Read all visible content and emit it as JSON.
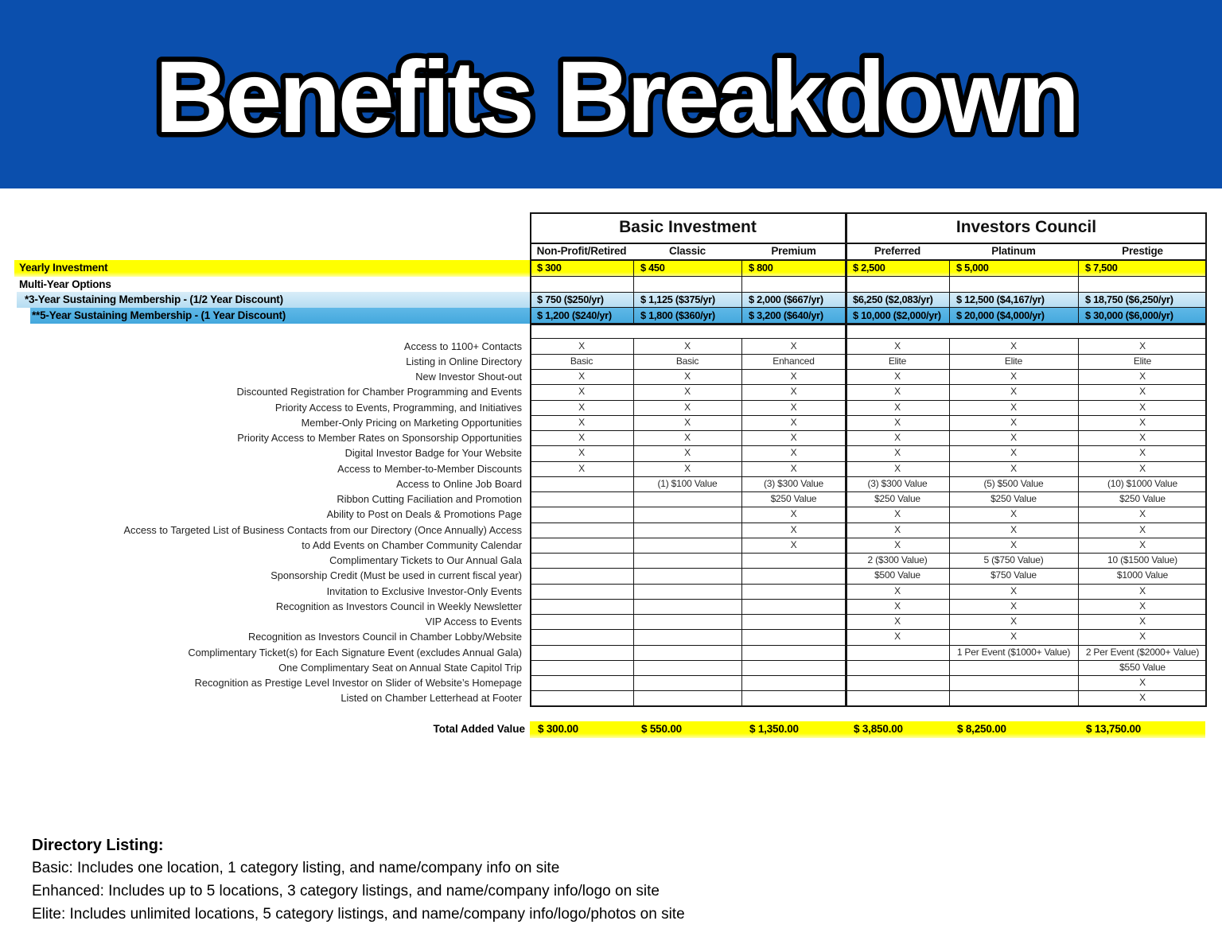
{
  "title": "Benefits Breakdown",
  "colors": {
    "hero_blue": "#0B4FAD",
    "band_yellow": "#FFFF00",
    "band_lightblue": "#BEE3F4",
    "band_blue": "#4FB0E2",
    "border_black": "#141414"
  },
  "table": {
    "groups": [
      {
        "label": "Basic Investment"
      },
      {
        "label": "Investors Council"
      }
    ],
    "columns": [
      "Non-Profit/Retired",
      "Classic",
      "Premium",
      "Preferred",
      "Platinum",
      "Prestige"
    ],
    "pricing_rows": [
      {
        "label": "Yearly Investment",
        "style": "yellow",
        "values": [
          "$ 300",
          "$ 450",
          "$ 800",
          "$ 2,500",
          "$ 5,000",
          "$ 7,500"
        ]
      },
      {
        "label": "Multi-Year Options",
        "style": "white",
        "values": [
          "",
          "",
          "",
          "",
          "",
          ""
        ]
      },
      {
        "label": "*3-Year Sustaining Membership - (1/2 Year Discount)",
        "style": "lightblue",
        "values": [
          "$ 750 ($250/yr)",
          "$ 1,125 ($375/yr)",
          "$ 2,000 ($667/yr)",
          "$6,250 ($2,083/yr)",
          "$ 12,500 ($4,167/yr)",
          "$ 18,750 ($6,250/yr)"
        ]
      },
      {
        "label": "**5-Year Sustaining Membership - (1 Year Discount)",
        "style": "blue",
        "values": [
          "$ 1,200 ($240/yr)",
          "$ 1,800 ($360/yr)",
          "$ 3,200 ($640/yr)",
          "$ 10,000 ($2,000/yr)",
          "$ 20,000 ($4,000/yr)",
          "$ 30,000 ($6,000/yr)"
        ]
      }
    ],
    "benefit_rows": [
      {
        "label": "Access to 1100+ Contacts",
        "values": [
          "X",
          "X",
          "X",
          "X",
          "X",
          "X"
        ]
      },
      {
        "label": "Listing in Online Directory",
        "values": [
          "Basic",
          "Basic",
          "Enhanced",
          "Elite",
          "Elite",
          "Elite"
        ]
      },
      {
        "label": "New Investor Shout-out",
        "values": [
          "X",
          "X",
          "X",
          "X",
          "X",
          "X"
        ]
      },
      {
        "label": "Discounted Registration for Chamber Programming and Events",
        "values": [
          "X",
          "X",
          "X",
          "X",
          "X",
          "X"
        ]
      },
      {
        "label": "Priority Access to Events, Programming, and Initiatives",
        "values": [
          "X",
          "X",
          "X",
          "X",
          "X",
          "X"
        ]
      },
      {
        "label": "Member-Only Pricing on Marketing Opportunities",
        "values": [
          "X",
          "X",
          "X",
          "X",
          "X",
          "X"
        ]
      },
      {
        "label": "Priority Access to Member Rates on Sponsorship Opportunities",
        "values": [
          "X",
          "X",
          "X",
          "X",
          "X",
          "X"
        ]
      },
      {
        "label": "Digital Investor Badge for Your Website",
        "values": [
          "X",
          "X",
          "X",
          "X",
          "X",
          "X"
        ]
      },
      {
        "label": "Access to Member-to-Member Discounts",
        "values": [
          "X",
          "X",
          "X",
          "X",
          "X",
          "X"
        ]
      },
      {
        "label": "Access to Online Job Board",
        "values": [
          "",
          "(1) $100 Value",
          "(3) $300 Value",
          "(3) $300 Value",
          "(5) $500 Value",
          "(10) $1000 Value"
        ]
      },
      {
        "label": "Ribbon Cutting Faciliation and Promotion",
        "values": [
          "",
          "",
          "$250 Value",
          "$250 Value",
          "$250 Value",
          "$250 Value"
        ]
      },
      {
        "label": "Ability to Post on Deals & Promotions Page",
        "values": [
          "",
          "",
          "X",
          "X",
          "X",
          "X"
        ]
      },
      {
        "label": "Access to Targeted List of Business Contacts from our Directory (Once Annually) Access",
        "values": [
          "",
          "",
          "X",
          "X",
          "X",
          "X"
        ]
      },
      {
        "label": "to Add Events on Chamber Community Calendar",
        "values": [
          "",
          "",
          "X",
          "X",
          "X",
          "X"
        ]
      },
      {
        "label": "Complimentary Tickets to Our Annual Gala",
        "values": [
          "",
          "",
          "",
          "2 ($300 Value)",
          "5 ($750 Value)",
          "10 ($1500 Value)"
        ]
      },
      {
        "label": "Sponsorship Credit (Must be used in current fiscal year)",
        "values": [
          "",
          "",
          "",
          "$500 Value",
          "$750 Value",
          "$1000 Value"
        ]
      },
      {
        "label": "Invitation to Exclusive Investor-Only Events",
        "values": [
          "",
          "",
          "",
          "X",
          "X",
          "X"
        ]
      },
      {
        "label": "Recognition as Investors Council in Weekly Newsletter",
        "values": [
          "",
          "",
          "",
          "X",
          "X",
          "X"
        ]
      },
      {
        "label": "VIP Access to Events",
        "values": [
          "",
          "",
          "",
          "X",
          "X",
          "X"
        ]
      },
      {
        "label": "Recognition as Investors Council in Chamber Lobby/Website",
        "values": [
          "",
          "",
          "",
          "X",
          "X",
          "X"
        ]
      },
      {
        "label": "Complimentary Ticket(s) for Each Signature Event (excludes Annual Gala)",
        "values": [
          "",
          "",
          "",
          "",
          "1 Per Event ($1000+ Value)",
          "2 Per Event ($2000+ Value)"
        ]
      },
      {
        "label": "One Complimentary Seat on Annual State Capitol Trip",
        "values": [
          "",
          "",
          "",
          "",
          "",
          "$550 Value"
        ]
      },
      {
        "label": "Recognition as Prestige Level Investor on Slider of Website’s Homepage",
        "values": [
          "",
          "",
          "",
          "",
          "",
          "X"
        ]
      },
      {
        "label": "Listed on Chamber Letterhead at Footer",
        "values": [
          "",
          "",
          "",
          "",
          "",
          "X"
        ]
      }
    ],
    "total_row": {
      "label": "Total Added Value",
      "values": [
        "$ 300.00",
        "$ 550.00",
        "$ 1,350.00",
        "$ 3,850.00",
        "$ 8,250.00",
        "$ 13,750.00"
      ]
    }
  },
  "footer": {
    "heading": "Directory Listing:",
    "lines": [
      "Basic: Includes one location, 1 category listing, and name/company info on site",
      "Enhanced: Includes up to 5 locations, 3 category listings, and name/company info/logo on site",
      "Elite: Includes unlimited locations, 5 category listings, and name/company info/logo/photos on site"
    ]
  }
}
